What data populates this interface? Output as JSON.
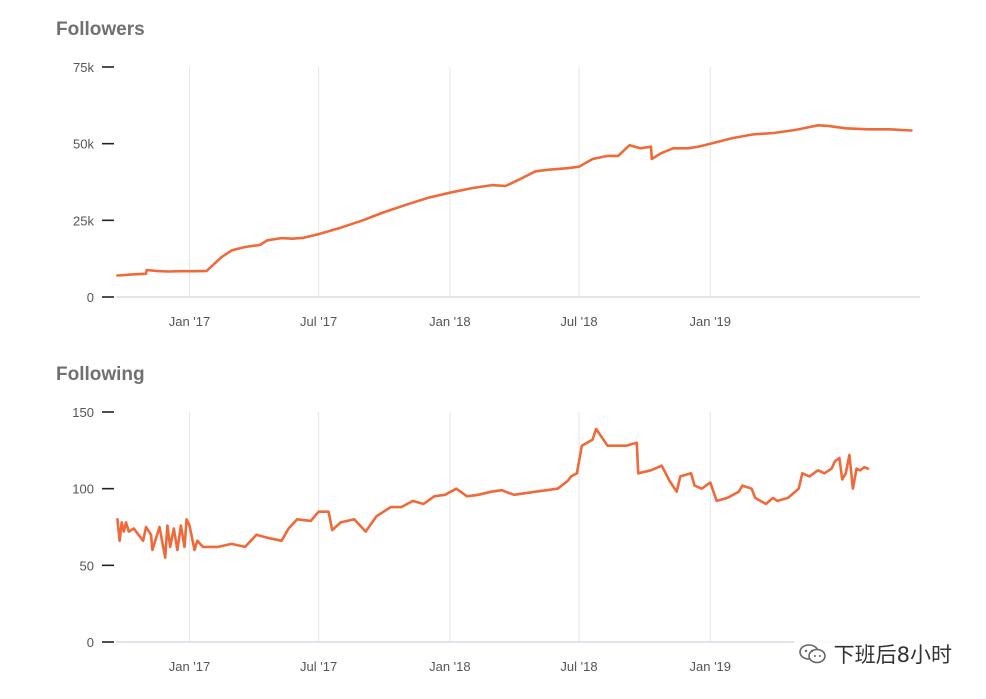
{
  "chart_data": [
    {
      "type": "line",
      "title": "Followers",
      "color": "#ef6a3a",
      "ylim": [
        0,
        75000
      ],
      "yticks": [
        0,
        25000,
        50000,
        75000
      ],
      "ytick_labels": [
        "0",
        "25k",
        "50k",
        "75k"
      ],
      "xlim": [
        "2016-09-20",
        "2019-10-22"
      ],
      "xticks": [
        "2017-01-01",
        "2017-07-01",
        "2018-01-01",
        "2018-07-01",
        "2019-01-01"
      ],
      "xtick_labels": [
        "Jan '17",
        "Jul '17",
        "Jan '18",
        "Jul '18",
        "Jan '19"
      ],
      "grid": "vertical",
      "series": [
        {
          "x": [
            "2016-09-22",
            "2016-10-10",
            "2016-11-01",
            "2016-11-02",
            "2016-11-15",
            "2016-12-01",
            "2016-12-20",
            "2017-01-10",
            "2017-01-25",
            "2017-02-01",
            "2017-02-15",
            "2017-03-01",
            "2017-03-20",
            "2017-04-10",
            "2017-04-20",
            "2017-05-10",
            "2017-05-25",
            "2017-06-10",
            "2017-07-01",
            "2017-08-01",
            "2017-09-01",
            "2017-10-01",
            "2017-11-01",
            "2017-12-01",
            "2018-01-01",
            "2018-02-01",
            "2018-03-01",
            "2018-03-20",
            "2018-04-10",
            "2018-05-01",
            "2018-05-20",
            "2018-06-15",
            "2018-07-01",
            "2018-07-20",
            "2018-08-10",
            "2018-08-25",
            "2018-09-05",
            "2018-09-10",
            "2018-09-25",
            "2018-10-10",
            "2018-10-11",
            "2018-10-25",
            "2018-11-10",
            "2018-12-01",
            "2018-12-15",
            "2019-01-01",
            "2019-02-01",
            "2019-03-01",
            "2019-04-01",
            "2019-05-01",
            "2019-06-01",
            "2019-06-15",
            "2019-07-10",
            "2019-08-10",
            "2019-09-10",
            "2019-10-10"
          ],
          "y": [
            7000,
            7300,
            7600,
            8800,
            8500,
            8300,
            8400,
            8400,
            8500,
            10000,
            13000,
            15200,
            16300,
            17000,
            18500,
            19200,
            19000,
            19300,
            20500,
            22600,
            25000,
            27700,
            30100,
            32300,
            34000,
            35500,
            36500,
            36200,
            38500,
            41000,
            41500,
            42000,
            42500,
            45000,
            46000,
            46000,
            48500,
            49500,
            48500,
            49000,
            45000,
            47000,
            48500,
            48500,
            49000,
            50000,
            51800,
            53000,
            53500,
            54500,
            56000,
            55800,
            55000,
            54700,
            54700,
            54300
          ]
        }
      ]
    },
    {
      "type": "line",
      "title": "Following",
      "color": "#ef6a3a",
      "ylim": [
        0,
        150
      ],
      "yticks": [
        0,
        50,
        100,
        150
      ],
      "ytick_labels": [
        "0",
        "50",
        "100",
        "150"
      ],
      "xlim": [
        "2016-09-20",
        "2019-10-22"
      ],
      "xticks": [
        "2017-01-01",
        "2017-07-01",
        "2018-01-01",
        "2018-07-01",
        "2019-01-01"
      ],
      "xtick_labels": [
        "Jan '17",
        "Jul '17",
        "Jan '18",
        "Jul '18",
        "Jan '19"
      ],
      "grid": "vertical",
      "series": [
        {
          "x": [
            "2016-09-22",
            "2016-09-25",
            "2016-09-28",
            "2016-10-01",
            "2016-10-04",
            "2016-10-08",
            "2016-10-15",
            "2016-10-28",
            "2016-11-01",
            "2016-11-08",
            "2016-11-10",
            "2016-11-20",
            "2016-11-28",
            "2016-12-01",
            "2016-12-05",
            "2016-12-10",
            "2016-12-15",
            "2016-12-20",
            "2016-12-25",
            "2016-12-28",
            "2017-01-01",
            "2017-01-08",
            "2017-01-12",
            "2017-01-20",
            "2017-02-10",
            "2017-03-01",
            "2017-03-20",
            "2017-04-05",
            "2017-04-20",
            "2017-05-10",
            "2017-05-20",
            "2017-06-01",
            "2017-06-20",
            "2017-07-01",
            "2017-07-15",
            "2017-07-20",
            "2017-08-01",
            "2017-08-20",
            "2017-09-05",
            "2017-09-20",
            "2017-10-10",
            "2017-10-25",
            "2017-11-10",
            "2017-11-25",
            "2017-12-10",
            "2017-12-25",
            "2018-01-10",
            "2018-01-25",
            "2018-02-10",
            "2018-02-28",
            "2018-03-15",
            "2018-03-20",
            "2018-04-01",
            "2018-05-01",
            "2018-06-01",
            "2018-06-15",
            "2018-06-20",
            "2018-06-28",
            "2018-07-05",
            "2018-07-20",
            "2018-07-25",
            "2018-08-10",
            "2018-09-05",
            "2018-09-20",
            "2018-09-22",
            "2018-10-10",
            "2018-10-25",
            "2018-11-05",
            "2018-11-15",
            "2018-11-20",
            "2018-12-05",
            "2018-12-10",
            "2018-12-20",
            "2019-01-01",
            "2019-01-10",
            "2019-01-25",
            "2019-02-10",
            "2019-02-15",
            "2019-02-28",
            "2019-03-05",
            "2019-03-20",
            "2019-03-30",
            "2019-04-05",
            "2019-04-20",
            "2019-05-05",
            "2019-05-10",
            "2019-05-20",
            "2019-06-01",
            "2019-06-10",
            "2019-06-20",
            "2019-06-25",
            "2019-07-01",
            "2019-07-05",
            "2019-07-10",
            "2019-07-15",
            "2019-07-20",
            "2019-07-25",
            "2019-07-30",
            "2019-08-05",
            "2019-08-10"
          ],
          "y": [
            80,
            66,
            78,
            72,
            78,
            72,
            74,
            66,
            75,
            70,
            60,
            75,
            55,
            76,
            62,
            74,
            60,
            76,
            62,
            80,
            76,
            60,
            66,
            62,
            62,
            64,
            62,
            70,
            68,
            66,
            74,
            80,
            79,
            85,
            85,
            73,
            78,
            80,
            72,
            82,
            88,
            88,
            92,
            90,
            95,
            96,
            100,
            95,
            96,
            98,
            99,
            98,
            96,
            98,
            100,
            105,
            108,
            110,
            128,
            132,
            139,
            128,
            128,
            130,
            110,
            112,
            115,
            105,
            98,
            108,
            110,
            102,
            100,
            104,
            92,
            94,
            98,
            102,
            100,
            94,
            90,
            94,
            92,
            94,
            100,
            110,
            108,
            112,
            110,
            113,
            118,
            120,
            106,
            110,
            122,
            100,
            113,
            112,
            114,
            113
          ]
        }
      ]
    }
  ],
  "watermark": {
    "text": "下班后8小时",
    "icon": "wechat-icon"
  }
}
